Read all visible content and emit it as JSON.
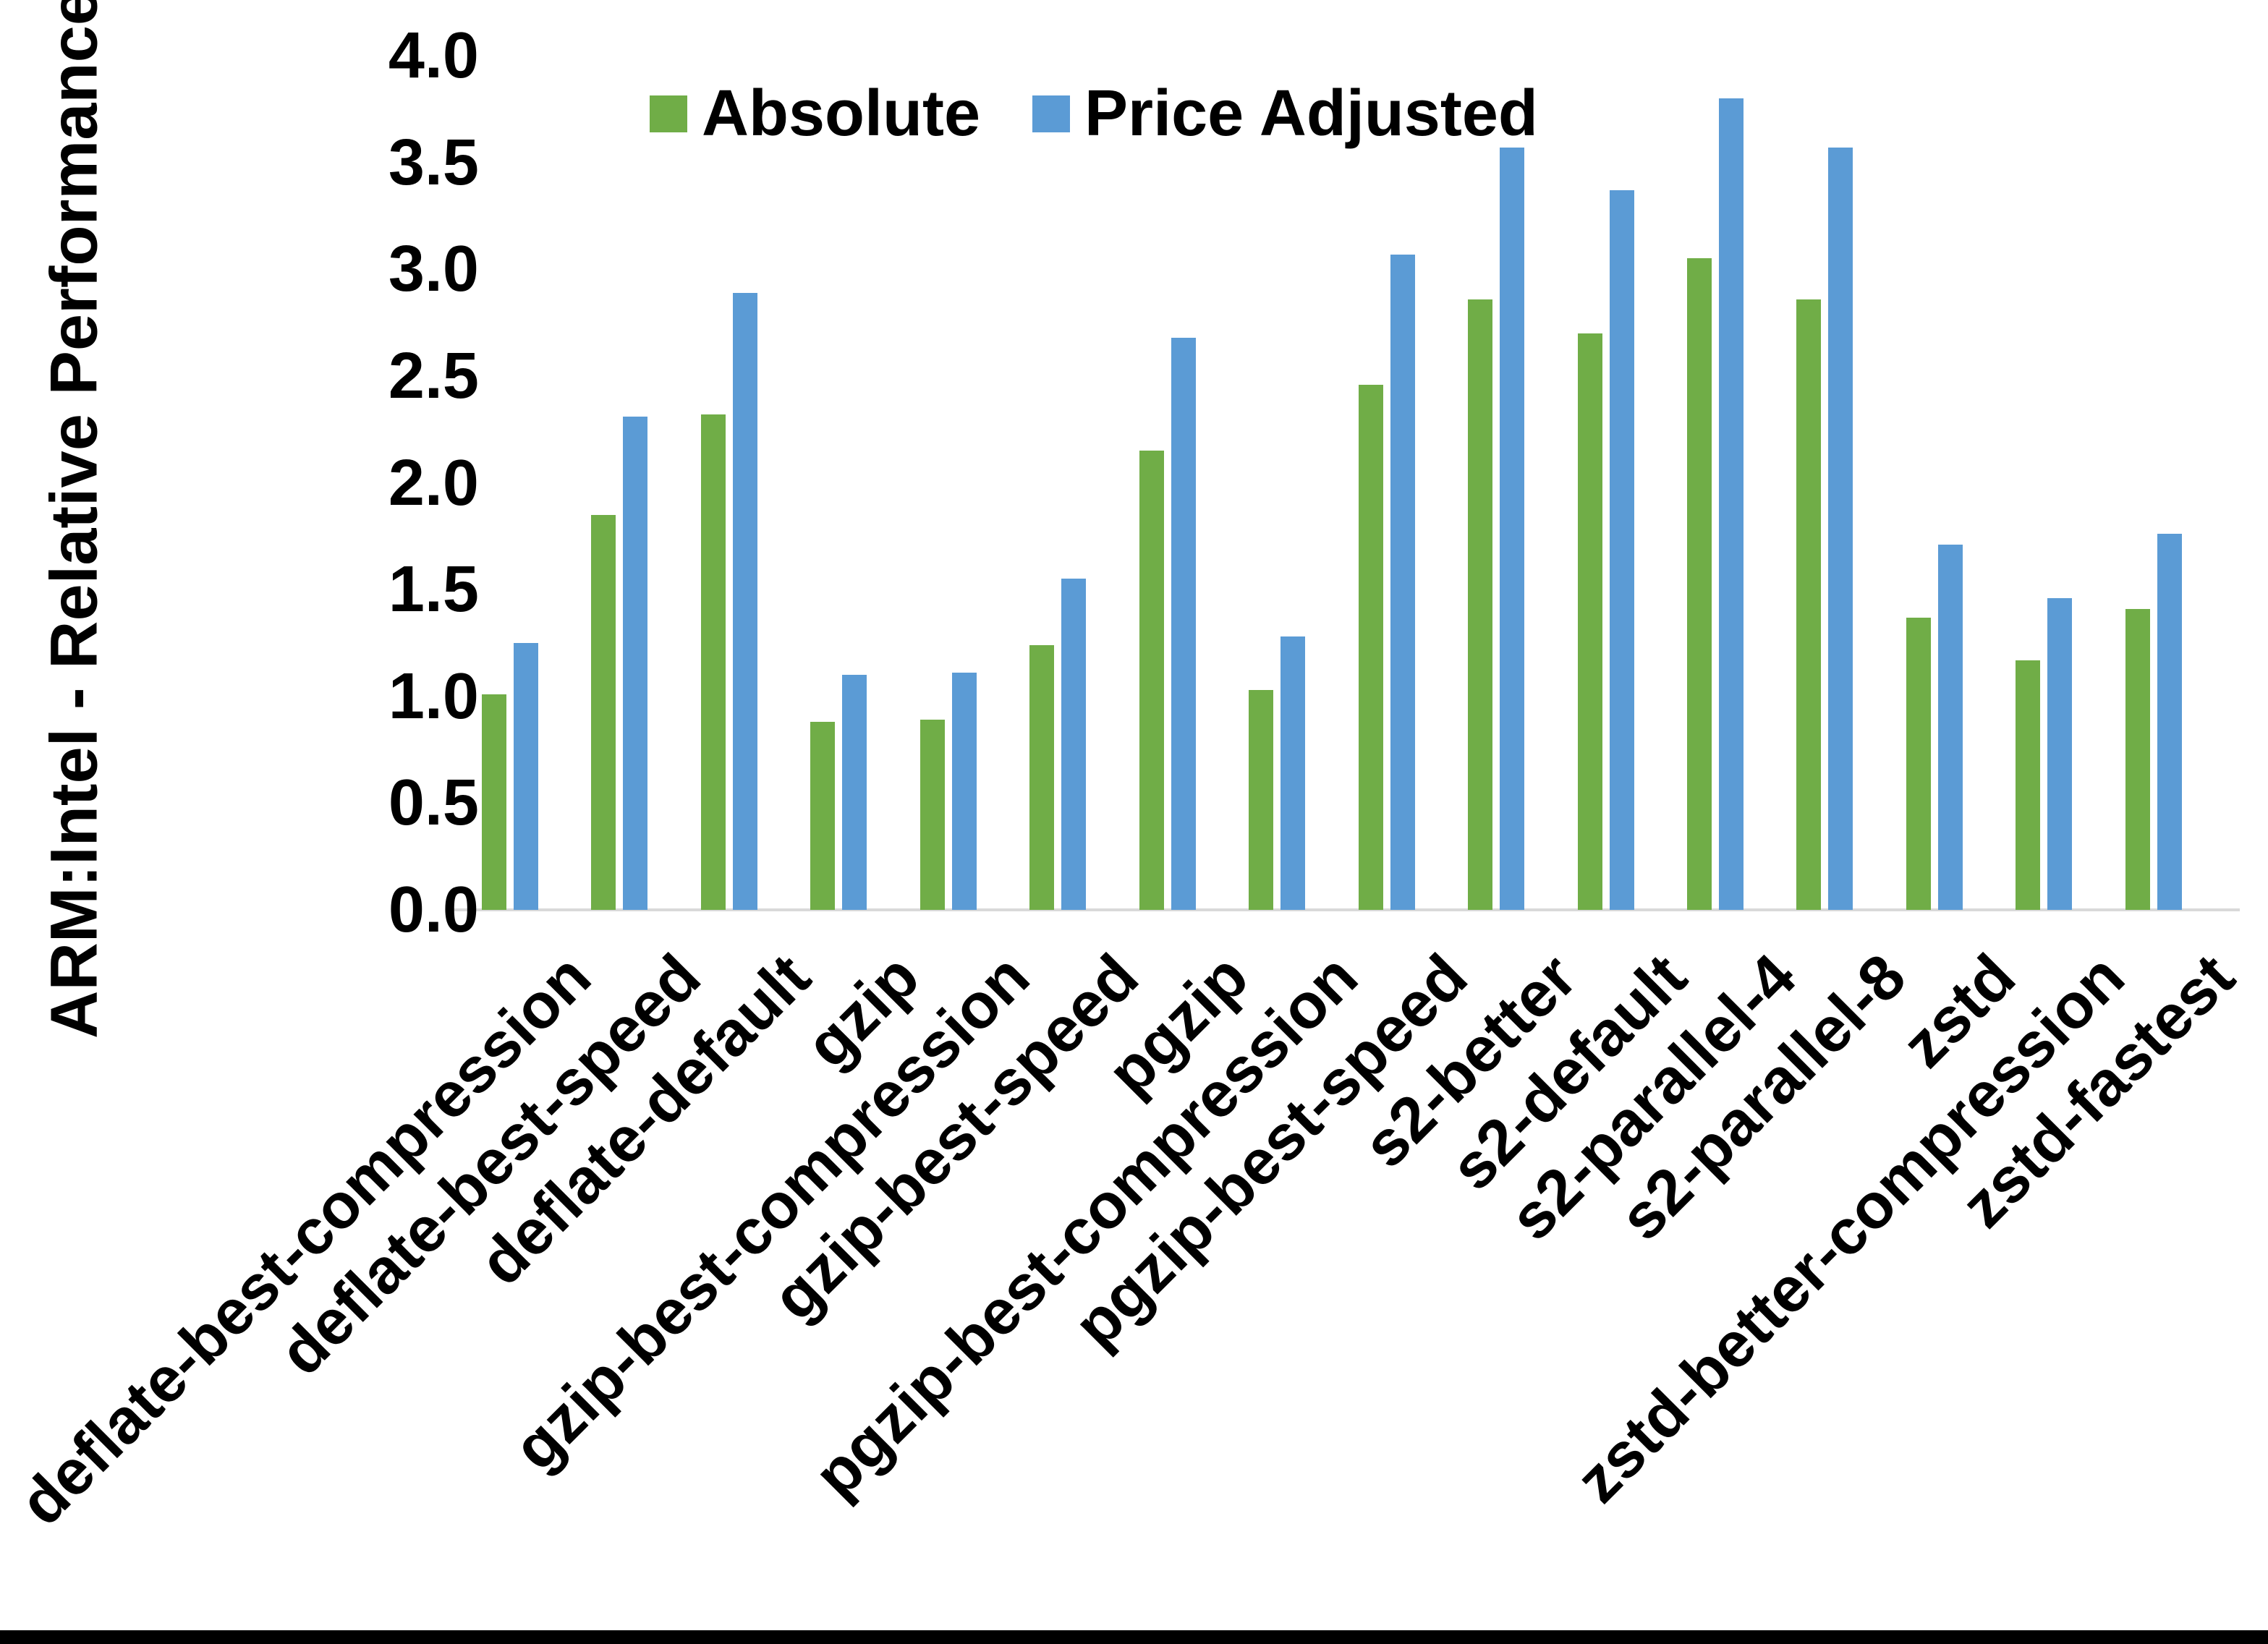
{
  "chart_data": {
    "type": "bar",
    "title": "",
    "ylabel": "ARM:Intel - Relative Performance",
    "xlabel": "",
    "ylim": [
      0.0,
      4.0
    ],
    "grid": false,
    "legend_position": "top-center",
    "background_color": "#FFFFFF",
    "axis_line_color": "#D9D9D9",
    "ytick_labels": [
      "0.0",
      "0.5",
      "1.0",
      "1.5",
      "2.0",
      "2.5",
      "3.0",
      "3.5",
      "4.0"
    ],
    "categories": [
      "deflate-best-compression",
      "deflate-best-speed",
      "deflate-default",
      "gzip",
      "gzip-best-compression",
      "gzip-best-speed",
      "pgzip",
      "pgzip-best-compression",
      "pgzip-best-speed",
      "s2-better",
      "s2-default",
      "s2-parallel-4",
      "s2-parallel-8",
      "zstd",
      "zstd-better-compression",
      "zstd-fastest"
    ],
    "series": [
      {
        "name": "Absolute",
        "color": "#70AD47",
        "values": [
          1.01,
          1.85,
          2.32,
          0.88,
          0.89,
          1.24,
          2.15,
          1.03,
          2.46,
          2.86,
          2.7,
          3.05,
          2.86,
          1.37,
          1.17,
          1.41
        ]
      },
      {
        "name": "Price Adjusted",
        "color": "#5B9BD5",
        "values": [
          1.25,
          2.31,
          2.89,
          1.1,
          1.11,
          1.55,
          2.68,
          1.28,
          3.07,
          3.57,
          3.37,
          3.8,
          3.57,
          1.71,
          1.46,
          1.76
        ]
      }
    ]
  }
}
